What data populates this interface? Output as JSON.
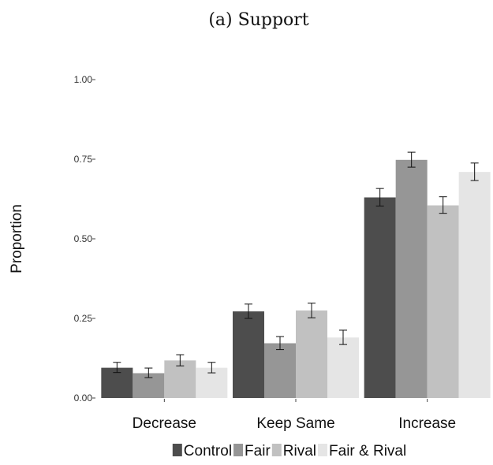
{
  "chart_data": {
    "type": "bar",
    "title": "(a) Support",
    "xlabel": "",
    "ylabel": "Proportion",
    "ylim": [
      0,
      1
    ],
    "yticks": [
      "0.00",
      "0.25",
      "0.50",
      "0.75",
      "1.00"
    ],
    "ytick_values": [
      0,
      0.25,
      0.5,
      0.75,
      1.0
    ],
    "categories": [
      "Decrease",
      "Keep Same",
      "Increase"
    ],
    "grid": false,
    "legend_position": "bottom",
    "series": [
      {
        "name": "Control",
        "color": "#4d4d4d",
        "values": [
          0.095,
          0.272,
          0.63
        ],
        "err_low": [
          0.08,
          0.25,
          0.603
        ],
        "err_high": [
          0.112,
          0.295,
          0.658
        ]
      },
      {
        "name": "Fair",
        "color": "#969696",
        "values": [
          0.078,
          0.172,
          0.748
        ],
        "err_low": [
          0.064,
          0.152,
          0.725
        ],
        "err_high": [
          0.094,
          0.193,
          0.772
        ]
      },
      {
        "name": "Rival",
        "color": "#c1c1c1",
        "values": [
          0.118,
          0.275,
          0.605
        ],
        "err_low": [
          0.101,
          0.252,
          0.58
        ],
        "err_high": [
          0.136,
          0.298,
          0.632
        ]
      },
      {
        "name": "Fair & Rival",
        "color": "#e5e5e5",
        "values": [
          0.095,
          0.19,
          0.71
        ],
        "err_low": [
          0.079,
          0.168,
          0.683
        ],
        "err_high": [
          0.112,
          0.213,
          0.738
        ]
      }
    ]
  }
}
